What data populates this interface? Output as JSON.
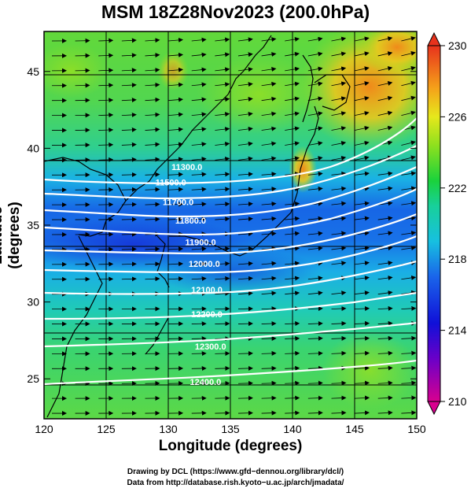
{
  "title": "MSM 18Z28Nov2023 (200.0hPa)",
  "x_axis": {
    "label": "Longitude (degrees)",
    "ticks": [
      {
        "value": 120,
        "label": "120"
      },
      {
        "value": 125,
        "label": "125"
      },
      {
        "value": 130,
        "label": "130"
      },
      {
        "value": 135,
        "label": "135"
      },
      {
        "value": 140,
        "label": "140"
      },
      {
        "value": 145,
        "label": "145"
      },
      {
        "value": 150,
        "label": "150"
      }
    ],
    "range": [
      120,
      150
    ]
  },
  "y_axis": {
    "label": "Latitude  (degrees)",
    "ticks": [
      {
        "value": 25,
        "label": "25"
      },
      {
        "value": 30,
        "label": "30"
      },
      {
        "value": 35,
        "label": "35"
      },
      {
        "value": 40,
        "label": "40"
      },
      {
        "value": 45,
        "label": "45"
      }
    ],
    "range": [
      22.4,
      47.6
    ]
  },
  "colorbar": {
    "min": 210,
    "max": 230,
    "ticks": [
      {
        "value": 230,
        "label": "230"
      },
      {
        "value": 226,
        "label": "226"
      },
      {
        "value": 222,
        "label": "222"
      },
      {
        "value": 218,
        "label": "218"
      },
      {
        "value": 214,
        "label": "214"
      },
      {
        "value": 210,
        "label": "210"
      }
    ]
  },
  "contours": [
    {
      "label": "11300.0",
      "label_lon": 131.5,
      "label_lat": 38.8
    },
    {
      "label": "11500.0",
      "label_lon": 130.2,
      "label_lat": 37.8
    },
    {
      "label": "11700.0",
      "label_lon": 130.8,
      "label_lat": 36.5
    },
    {
      "label": "11800.0",
      "label_lon": 131.8,
      "label_lat": 35.3
    },
    {
      "label": "11900.0",
      "label_lon": 132.6,
      "label_lat": 33.9
    },
    {
      "label": "12000.0",
      "label_lon": 132.9,
      "label_lat": 32.5
    },
    {
      "label": "12100.0",
      "label_lon": 133.1,
      "label_lat": 30.8
    },
    {
      "label": "12200.0",
      "label_lon": 133.1,
      "label_lat": 29.2
    },
    {
      "label": "12300.0",
      "label_lon": 133.4,
      "label_lat": 27.1
    },
    {
      "label": "12400.0",
      "label_lon": 133.0,
      "label_lat": 24.8
    }
  ],
  "credits": [
    "Drawing by DCL (https://www.gfd−dennou.org/library/dcl/)",
    "Data from http://database.rish.kyoto−u.ac.jp/arch/jmadata/"
  ]
}
